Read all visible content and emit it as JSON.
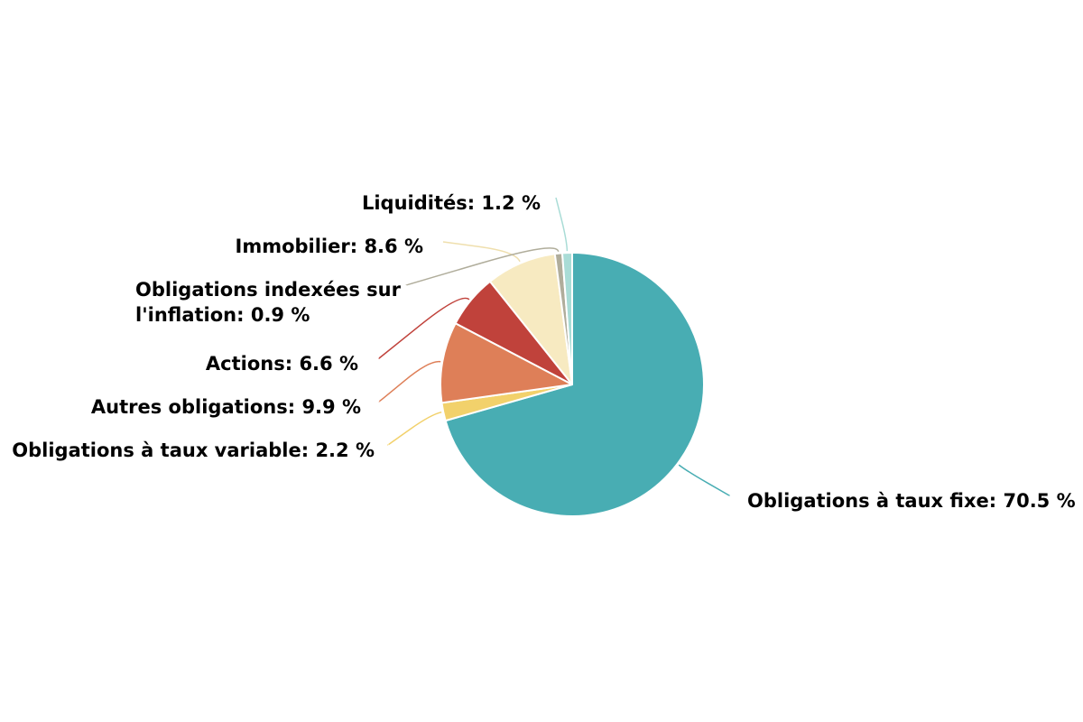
{
  "chart_data": {
    "type": "pie",
    "title": "",
    "slices": [
      {
        "label": "Obligations à taux fixe: 70.5 %",
        "value": 70.5,
        "color": "#48adb3"
      },
      {
        "label": "Obligations à taux variable: 2.2 %",
        "value": 2.2,
        "color": "#f2d16b"
      },
      {
        "label": "Autres obligations: 9.9 %",
        "value": 9.9,
        "color": "#de7f58"
      },
      {
        "label": "Actions: 6.6 %",
        "value": 6.6,
        "color": "#c0423b"
      },
      {
        "label": "Immobilier: 8.6 %",
        "value": 8.6,
        "color": "#f7eac1"
      },
      {
        "label": "Obligations indexées sur l'inflation: 0.9 %",
        "value": 0.9,
        "color": "#b0ad9b"
      },
      {
        "label": "Liquidités: 1.2 %",
        "value": 1.2,
        "color": "#a9dcd6"
      }
    ],
    "start_angle": "12 o'clock",
    "direction": "clockwise",
    "legend": "none"
  }
}
